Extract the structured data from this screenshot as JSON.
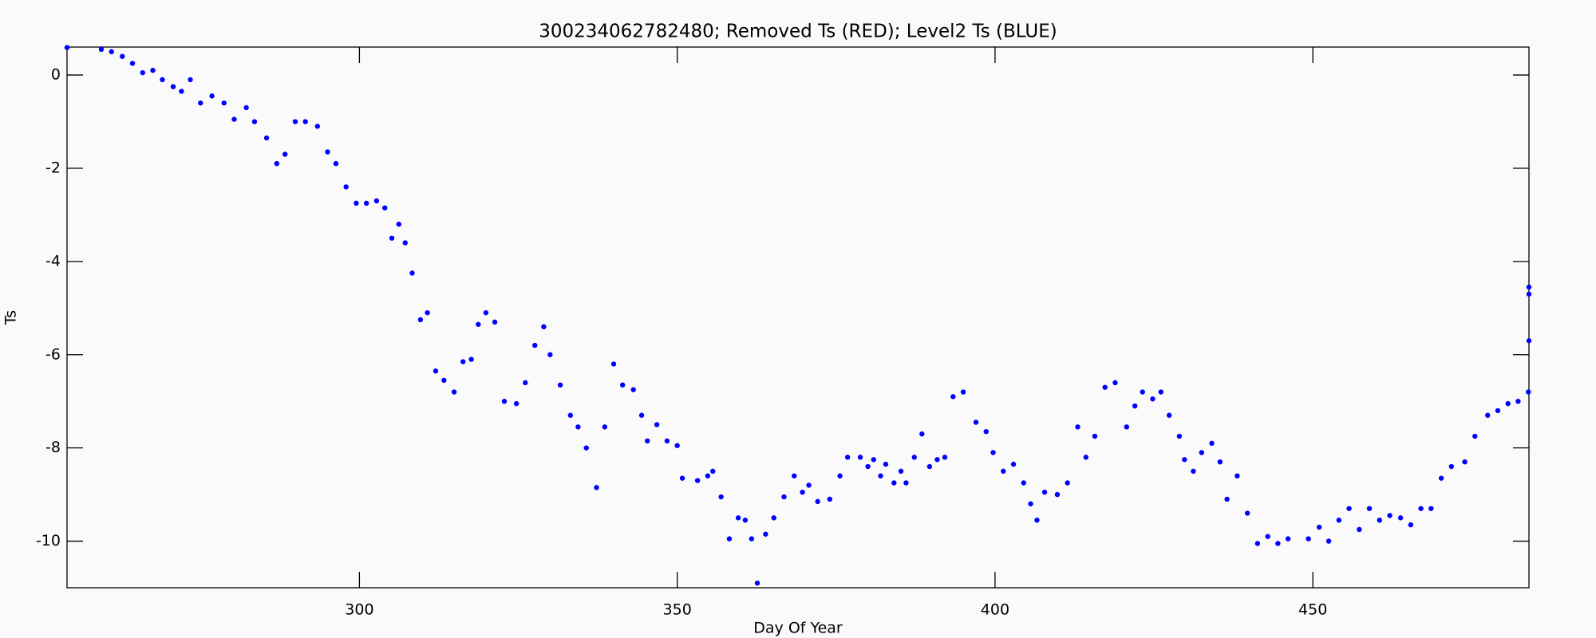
{
  "chart_data": {
    "type": "scatter",
    "title": "300234062782480; Removed Ts (RED); Level2 Ts (BLUE)",
    "x_label": "Day Of Year",
    "y_label": "Ts",
    "xlim": [
      254,
      484
    ],
    "ylim": [
      -11,
      0.6
    ],
    "xticks": [
      300,
      350,
      400,
      450
    ],
    "yticks": [
      -10,
      -8,
      -6,
      -4,
      -2,
      0
    ],
    "series": [
      {
        "color": "#0000ff",
        "x": [
          254,
          259.4,
          261,
          262.7,
          264.3,
          265.9,
          267.5,
          269,
          270.7,
          272,
          273.4,
          275,
          276.8,
          278.7,
          280.3,
          282.2,
          283.5,
          285.4,
          287,
          288.3,
          289.9,
          291.5,
          293.4,
          295,
          296.3,
          297.9,
          299.5,
          301.1,
          302.7,
          304,
          305.1,
          306.2,
          307.2,
          308.3,
          309.6,
          310.7,
          312,
          313.3,
          314.9,
          316.3,
          317.6,
          318.7,
          319.9,
          321.3,
          322.8,
          324.7,
          326.1,
          327.6,
          329,
          330,
          331.6,
          333.2,
          334.4,
          335.7,
          337.3,
          338.6,
          340,
          341.4,
          343.1,
          344.4,
          345.3,
          346.8,
          348.4,
          350,
          350.8,
          353.2,
          354.8,
          355.6,
          356.9,
          358.2,
          359.6,
          360.7,
          361.7,
          362.6,
          363.9,
          365.2,
          366.8,
          368.4,
          369.7,
          370.7,
          372.1,
          374,
          375.6,
          376.8,
          378.8,
          380,
          380.9,
          382,
          382.8,
          384.1,
          385.2,
          386,
          387.3,
          388.5,
          389.7,
          390.9,
          392.1,
          393.4,
          395,
          397,
          398.6,
          399.7,
          401.3,
          402.9,
          404.5,
          405.6,
          406.6,
          407.8,
          409.8,
          411.4,
          413,
          414.3,
          415.7,
          417.3,
          418.9,
          420.7,
          422,
          423.2,
          424.8,
          426.1,
          427.4,
          429,
          429.8,
          431.2,
          432.5,
          434.1,
          435.4,
          436.5,
          438.1,
          439.7,
          441.3,
          442.9,
          444.5,
          446.1,
          449.3,
          451,
          452.5,
          454.1,
          455.7,
          457.3,
          458.9,
          460.5,
          462.1,
          463.8,
          465.4,
          467,
          468.6,
          470.2,
          471.8,
          473.9,
          475.5,
          477.5,
          479.1,
          480.7,
          482.3,
          483.9,
          484,
          484,
          484
        ],
        "values": [
          0.59,
          0.55,
          0.5,
          0.4,
          0.25,
          0.05,
          0.1,
          -0.1,
          -0.25,
          -0.35,
          -0.1,
          -0.6,
          -0.45,
          -0.6,
          -0.95,
          -0.7,
          -1,
          -1.35,
          -1.9,
          -1.7,
          -1,
          -1,
          -1.1,
          -1.65,
          -1.9,
          -2.4,
          -2.75,
          -2.75,
          -2.7,
          -2.85,
          -3.5,
          -3.2,
          -3.6,
          -4.25,
          -5.25,
          -5.1,
          -6.35,
          -6.55,
          -6.8,
          -6.15,
          -6.1,
          -5.35,
          -5.1,
          -5.3,
          -7,
          -7.05,
          -6.6,
          -5.8,
          -5.4,
          -6,
          -6.65,
          -7.3,
          -7.55,
          -8,
          -8.85,
          -7.55,
          -6.2,
          -6.65,
          -6.75,
          -7.3,
          -7.85,
          -7.5,
          -7.85,
          -7.95,
          -8.65,
          -8.7,
          -8.6,
          -8.5,
          -9.05,
          -9.95,
          -9.5,
          -9.55,
          -9.95,
          -10.9,
          -9.85,
          -9.5,
          -9.05,
          -8.6,
          -8.95,
          -8.8,
          -9.15,
          -9.1,
          -8.6,
          -8.2,
          -8.2,
          -8.4,
          -8.25,
          -8.6,
          -8.35,
          -8.75,
          -8.5,
          -8.75,
          -8.2,
          -7.7,
          -8.4,
          -8.25,
          -8.2,
          -6.9,
          -6.8,
          -7.45,
          -7.65,
          -8.1,
          -8.5,
          -8.35,
          -8.75,
          -9.2,
          -9.55,
          -8.95,
          -9,
          -8.75,
          -7.55,
          -8.2,
          -7.75,
          -6.7,
          -6.6,
          -7.55,
          -7.1,
          -6.8,
          -6.95,
          -6.8,
          -7.3,
          -7.75,
          -8.25,
          -8.5,
          -8.1,
          -7.9,
          -8.3,
          -9.1,
          -8.6,
          -9.4,
          -10.05,
          -9.9,
          -10.05,
          -9.95,
          -9.95,
          -9.7,
          -10,
          -9.55,
          -9.3,
          -9.75,
          -9.3,
          -9.55,
          -9.45,
          -9.5,
          -9.65,
          -9.3,
          -9.3,
          -8.65,
          -8.4,
          -8.3,
          -7.75,
          -7.3,
          -7.2,
          -7.05,
          -7,
          -6.8,
          -4.55,
          -4.7,
          -5.7
        ]
      }
    ]
  }
}
